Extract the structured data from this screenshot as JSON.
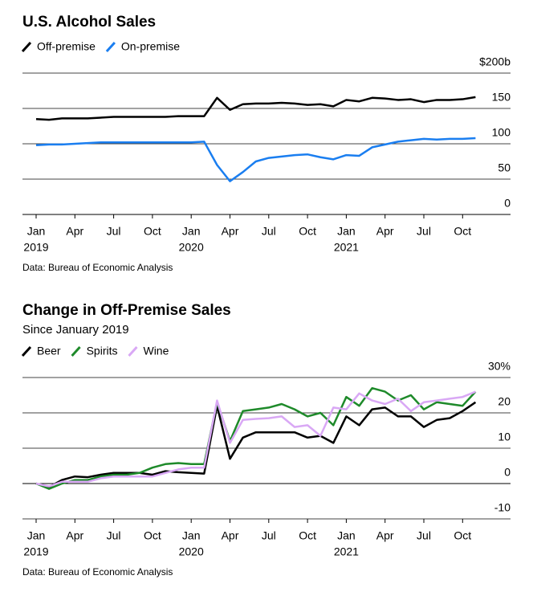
{
  "chart_data": [
    {
      "type": "line",
      "title": "U.S. Alcohol Sales",
      "source": "Data: Bureau of Economic Analysis",
      "categories": [
        "Jan",
        null,
        null,
        "Apr",
        null,
        null,
        "Jul",
        null,
        null,
        "Oct",
        null,
        null,
        "Jan",
        null,
        null,
        "Apr",
        null,
        null,
        "Jul",
        null,
        null,
        "Oct",
        null,
        null,
        "Jan",
        null,
        null,
        "Apr",
        null,
        null,
        "Jul",
        null,
        null,
        "Oct",
        null
      ],
      "category_years": [
        "2019",
        null,
        null,
        null,
        null,
        null,
        null,
        null,
        null,
        null,
        null,
        null,
        "2020",
        null,
        null,
        null,
        null,
        null,
        null,
        null,
        null,
        null,
        null,
        null,
        "2021",
        null,
        null,
        null,
        null,
        null,
        null,
        null,
        null,
        null,
        null
      ],
      "ylim": [
        0,
        200
      ],
      "yticks": [
        0,
        50,
        100,
        150,
        {
          "value": 200,
          "label": "$200b"
        }
      ],
      "grid": true,
      "series": [
        {
          "name": "Off-premise",
          "color": "#000000",
          "values": [
            135,
            134,
            136,
            136,
            136,
            137,
            138,
            138,
            138,
            138,
            138,
            139,
            139,
            139,
            165,
            148,
            156,
            157,
            157,
            158,
            157,
            155,
            156,
            153,
            162,
            160,
            165,
            164,
            162,
            163,
            159,
            162,
            162,
            163,
            166
          ]
        },
        {
          "name": "On-premise",
          "color": "#1a7ef0",
          "values": [
            98,
            99,
            99,
            100,
            101,
            102,
            102,
            102,
            102,
            102,
            102,
            102,
            102,
            103,
            70,
            47,
            60,
            75,
            80,
            82,
            84,
            85,
            81,
            78,
            84,
            83,
            95,
            99,
            103,
            105,
            107,
            106,
            107,
            107,
            108
          ]
        }
      ]
    },
    {
      "type": "line",
      "title": "Change in Off-Premise Sales",
      "subtitle": "Since January 2019",
      "source": "Data: Bureau of Economic Analysis",
      "categories": [
        "Jan",
        null,
        null,
        "Apr",
        null,
        null,
        "Jul",
        null,
        null,
        "Oct",
        null,
        null,
        "Jan",
        null,
        null,
        "Apr",
        null,
        null,
        "Jul",
        null,
        null,
        "Oct",
        null,
        null,
        "Jan",
        null,
        null,
        "Apr",
        null,
        null,
        "Jul",
        null,
        null,
        "Oct",
        null
      ],
      "category_years": [
        "2019",
        null,
        null,
        null,
        null,
        null,
        null,
        null,
        null,
        null,
        null,
        null,
        "2020",
        null,
        null,
        null,
        null,
        null,
        null,
        null,
        null,
        null,
        null,
        null,
        "2021",
        null,
        null,
        null,
        null,
        null,
        null,
        null,
        null,
        null,
        null
      ],
      "ylim": [
        -10,
        30
      ],
      "yticks": [
        -10,
        0,
        10,
        20,
        {
          "value": 30,
          "label": "30%"
        }
      ],
      "grid": true,
      "series": [
        {
          "name": "Beer",
          "color": "#000000",
          "values": [
            0,
            -1,
            1,
            2,
            1.8,
            2.5,
            3,
            3,
            3,
            2.5,
            3.5,
            3.2,
            3,
            2.8,
            22,
            7,
            13,
            14.5,
            14.5,
            14.5,
            14.5,
            13,
            13.5,
            11.5,
            19,
            16.5,
            21,
            21.5,
            19,
            19,
            16,
            18,
            18.5,
            20.5,
            23
          ]
        },
        {
          "name": "Spirits",
          "color": "#1e8a2a",
          "values": [
            0,
            -1.5,
            0,
            1,
            1,
            2,
            2.5,
            2.5,
            3,
            4.5,
            5.5,
            5.8,
            5.5,
            5.5,
            23,
            12,
            20.5,
            21,
            21.5,
            22.5,
            21,
            19,
            20,
            16.5,
            24.5,
            22,
            27,
            26,
            23.5,
            25,
            21,
            23,
            22.5,
            22,
            26
          ]
        },
        {
          "name": "Wine",
          "color": "#d9a8f5",
          "values": [
            0,
            -0.8,
            0.5,
            0.5,
            0.5,
            1.5,
            2,
            2,
            2,
            2,
            3,
            4,
            4.5,
            4.5,
            23.5,
            11.5,
            18,
            18.3,
            18.5,
            19,
            16,
            16.5,
            13.5,
            21.5,
            21,
            25.5,
            23.5,
            22.5,
            24,
            20.5,
            23,
            23.5,
            24,
            24.5,
            26
          ]
        }
      ]
    }
  ]
}
